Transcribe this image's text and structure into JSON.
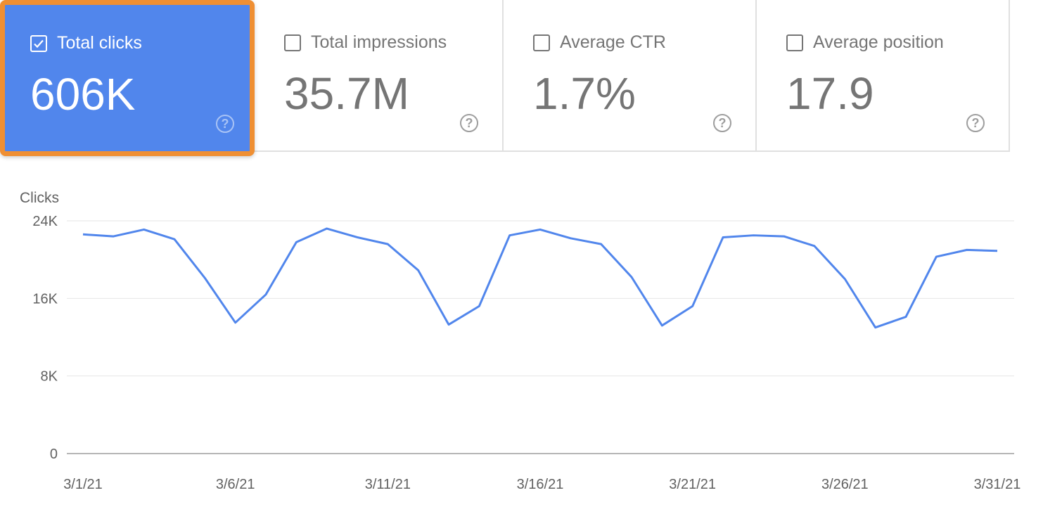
{
  "metrics": [
    {
      "label": "Total clicks",
      "value": "606K",
      "checked": true
    },
    {
      "label": "Total impressions",
      "value": "35.7M",
      "checked": false
    },
    {
      "label": "Average CTR",
      "value": "1.7%",
      "checked": false
    },
    {
      "label": "Average position",
      "value": "17.9",
      "checked": false
    }
  ],
  "help_glyph": "?",
  "colors": {
    "accent": "#5186ec",
    "highlight": "#ef8f33",
    "line": "#5186ec"
  },
  "chart_data": {
    "type": "line",
    "ylabel": "Clicks",
    "ylim": [
      0,
      24000
    ],
    "yticks": [
      0,
      8000,
      16000,
      24000
    ],
    "ytick_labels": [
      "0",
      "8K",
      "16K",
      "24K"
    ],
    "xtick_labels": [
      "3/1/21",
      "3/6/21",
      "3/11/21",
      "3/16/21",
      "3/21/21",
      "3/26/21",
      "3/31/21"
    ],
    "xtick_days": [
      1,
      6,
      11,
      16,
      21,
      26,
      31
    ],
    "grid": true,
    "series": [
      {
        "name": "Clicks",
        "x": [
          1,
          2,
          3,
          4,
          5,
          6,
          7,
          8,
          9,
          10,
          11,
          12,
          13,
          14,
          15,
          16,
          17,
          18,
          19,
          20,
          21,
          22,
          23,
          24,
          25,
          26,
          27,
          28,
          29,
          30,
          31
        ],
        "values": [
          22600,
          22400,
          23100,
          22100,
          18100,
          13500,
          16400,
          21800,
          23200,
          22300,
          21600,
          18900,
          13300,
          15200,
          22500,
          23100,
          22200,
          21600,
          18200,
          13200,
          15200,
          22300,
          22500,
          22400,
          21400,
          18000,
          13000,
          14100,
          20300,
          21000,
          20900
        ]
      }
    ]
  }
}
